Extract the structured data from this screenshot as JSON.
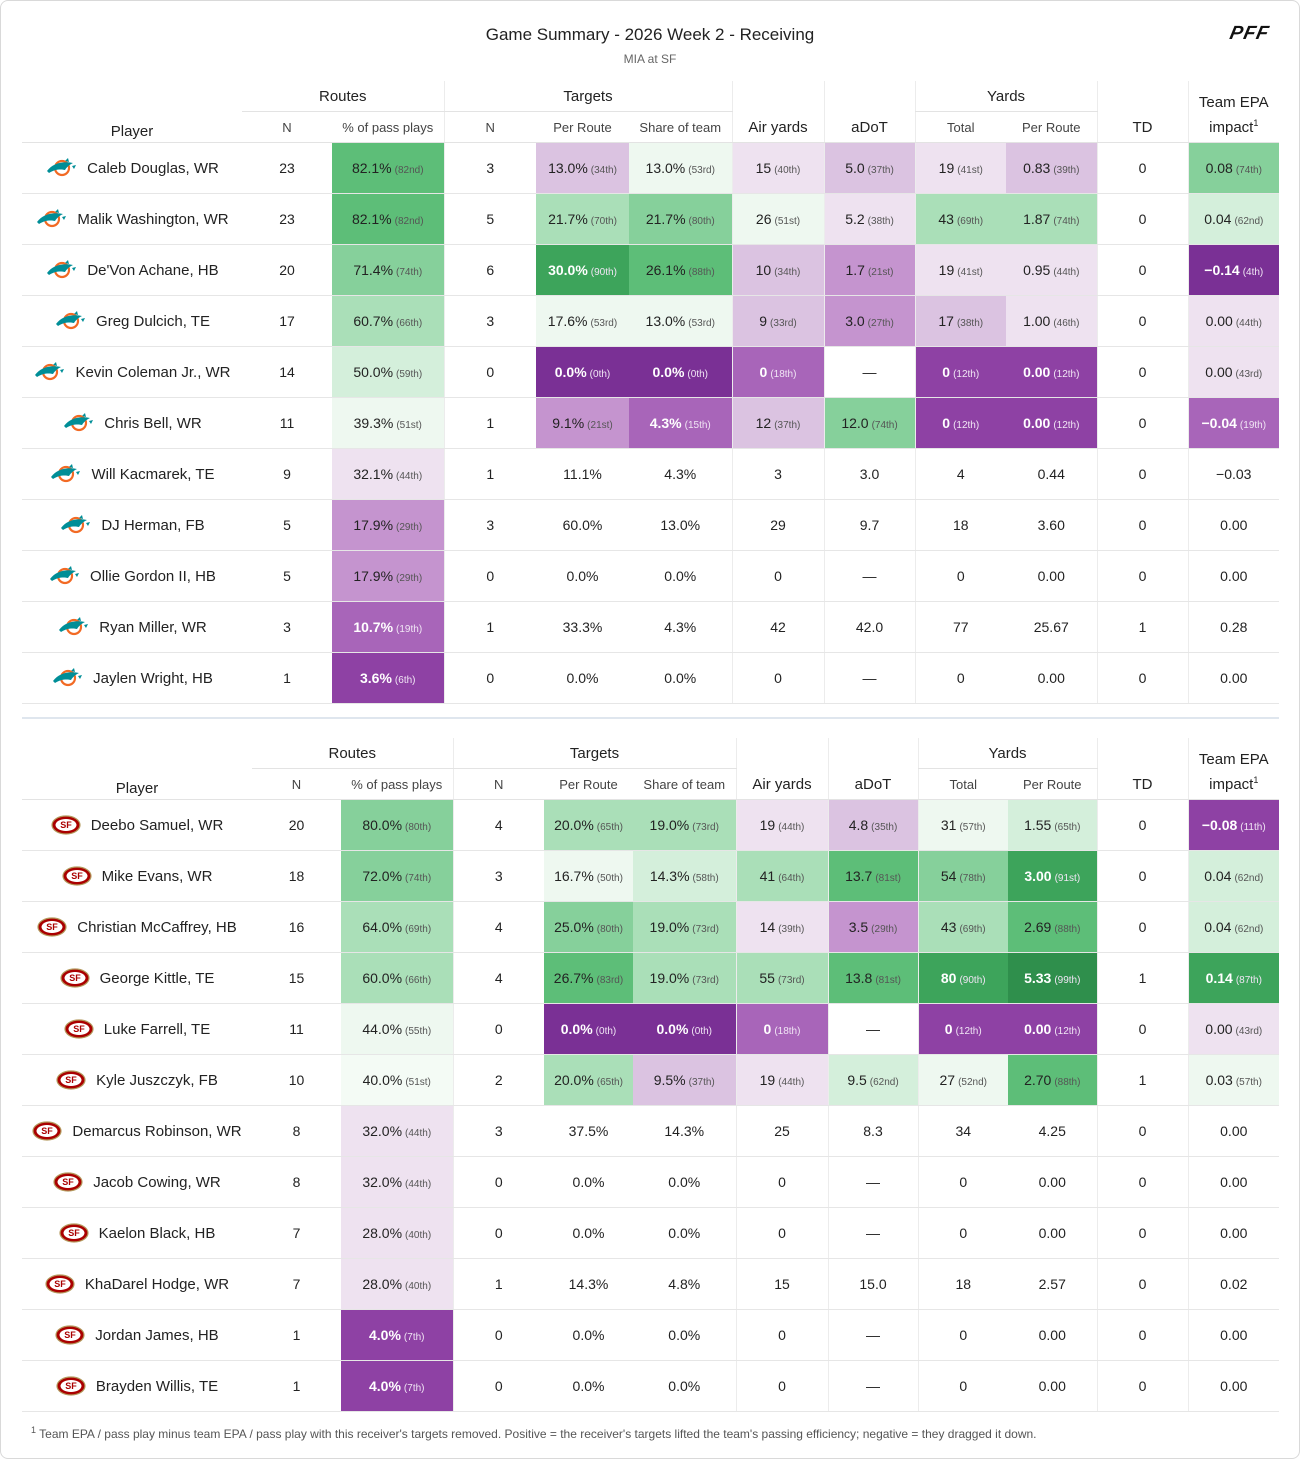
{
  "title": "Game Summary - 2026 Week 2 - Receiving",
  "subtitle": "MIA at SF",
  "logo_text": "PFF",
  "headers": {
    "player": "Player",
    "routes": "Routes",
    "targets": "Targets",
    "air_yards": "Air yards",
    "adot": "aDoT",
    "yards": "Yards",
    "td": "TD",
    "team_epa": "Team EPA impact",
    "team_epa_line1": "Team EPA",
    "team_epa_line2": "impact",
    "footnote_mark": "1",
    "n": "N",
    "pct_pass_plays": "% of pass plays",
    "per_route": "Per Route",
    "share_of_team": "Share of team",
    "total": "Total"
  },
  "colors": {
    "green_1": "#eef8f0",
    "green_2": "#d4efdb",
    "green_3": "#aadfb8",
    "green_4": "#86d09b",
    "green_5": "#5dbe78",
    "green_6": "#3da45b",
    "purple_1": "#eee2f0",
    "purple_2": "#dbc3e1",
    "purple_3": "#c594cf",
    "purple_4": "#a865b9",
    "purple_5": "#8e41a4",
    "purple_6": "#7a3095"
  },
  "teams": [
    {
      "name": "MIA",
      "icon": "dolphins-logo-icon",
      "rows": [
        {
          "player": "Caleb Douglas, WR",
          "routes_n": "23",
          "pct": "82.1%",
          "pct_rk": "(82nd)",
          "pct_c": "g5",
          "tgt": "3",
          "per_route": "13.0%",
          "per_route_rk": "(34th)",
          "per_route_c": "p2",
          "share": "13.0%",
          "share_rk": "(53rd)",
          "share_c": "g1",
          "air": "15",
          "air_rk": "(40th)",
          "air_c": "p1",
          "adot": "5.0",
          "adot_rk": "(37th)",
          "adot_c": "p2",
          "yds": "19",
          "yds_rk": "(41st)",
          "yds_c": "p1",
          "ypr": "0.83",
          "ypr_rk": "(39th)",
          "ypr_c": "p2",
          "td": "0",
          "epa": "0.08",
          "epa_rk": "(74th)",
          "epa_c": "g4"
        },
        {
          "player": "Malik Washington, WR",
          "routes_n": "23",
          "pct": "82.1%",
          "pct_rk": "(82nd)",
          "pct_c": "g5",
          "tgt": "5",
          "per_route": "21.7%",
          "per_route_rk": "(70th)",
          "per_route_c": "g3",
          "share": "21.7%",
          "share_rk": "(80th)",
          "share_c": "g4",
          "air": "26",
          "air_rk": "(51st)",
          "air_c": "g1",
          "adot": "5.2",
          "adot_rk": "(38th)",
          "adot_c": "p1",
          "yds": "43",
          "yds_rk": "(69th)",
          "yds_c": "g3",
          "ypr": "1.87",
          "ypr_rk": "(74th)",
          "ypr_c": "g3",
          "td": "0",
          "epa": "0.04",
          "epa_rk": "(62nd)",
          "epa_c": "g2"
        },
        {
          "player": "De'Von Achane, HB",
          "routes_n": "20",
          "pct": "71.4%",
          "pct_rk": "(74th)",
          "pct_c": "g4",
          "tgt": "6",
          "per_route": "30.0%",
          "per_route_rk": "(90th)",
          "per_route_c": "g6",
          "share": "26.1%",
          "share_rk": "(88th)",
          "share_c": "g5",
          "air": "10",
          "air_rk": "(34th)",
          "air_c": "p2",
          "adot": "1.7",
          "adot_rk": "(21st)",
          "adot_c": "p3",
          "yds": "19",
          "yds_rk": "(41st)",
          "yds_c": "p1",
          "ypr": "0.95",
          "ypr_rk": "(44th)",
          "ypr_c": "p1",
          "td": "0",
          "epa": "−0.14",
          "epa_rk": "(4th)",
          "epa_c": "p6"
        },
        {
          "player": "Greg Dulcich, TE",
          "routes_n": "17",
          "pct": "60.7%",
          "pct_rk": "(66th)",
          "pct_c": "g3",
          "tgt": "3",
          "per_route": "17.6%",
          "per_route_rk": "(53rd)",
          "per_route_c": "g1",
          "share": "13.0%",
          "share_rk": "(53rd)",
          "share_c": "g1",
          "air": "9",
          "air_rk": "(33rd)",
          "air_c": "p2",
          "adot": "3.0",
          "adot_rk": "(27th)",
          "adot_c": "p3",
          "yds": "17",
          "yds_rk": "(38th)",
          "yds_c": "p2",
          "ypr": "1.00",
          "ypr_rk": "(46th)",
          "ypr_c": "p1",
          "td": "0",
          "epa": "0.00",
          "epa_rk": "(44th)",
          "epa_c": "p1"
        },
        {
          "player": "Kevin Coleman Jr., WR",
          "routes_n": "14",
          "pct": "50.0%",
          "pct_rk": "(59th)",
          "pct_c": "g2",
          "tgt": "0",
          "per_route": "0.0%",
          "per_route_rk": "(0th)",
          "per_route_c": "p6",
          "share": "0.0%",
          "share_rk": "(0th)",
          "share_c": "p6",
          "air": "0",
          "air_rk": "(18th)",
          "air_c": "p4",
          "adot": "—",
          "adot_rk": "",
          "adot_c": "",
          "yds": "0",
          "yds_rk": "(12th)",
          "yds_c": "p5",
          "ypr": "0.00",
          "ypr_rk": "(12th)",
          "ypr_c": "p5",
          "td": "0",
          "epa": "0.00",
          "epa_rk": "(43rd)",
          "epa_c": "p1"
        },
        {
          "player": "Chris Bell, WR",
          "routes_n": "11",
          "pct": "39.3%",
          "pct_rk": "(51st)",
          "pct_c": "g1",
          "tgt": "1",
          "per_route": "9.1%",
          "per_route_rk": "(21st)",
          "per_route_c": "p3",
          "share": "4.3%",
          "share_rk": "(15th)",
          "share_c": "p4",
          "air": "12",
          "air_rk": "(37th)",
          "air_c": "p2",
          "adot": "12.0",
          "adot_rk": "(74th)",
          "adot_c": "g4",
          "yds": "0",
          "yds_rk": "(12th)",
          "yds_c": "p5",
          "ypr": "0.00",
          "ypr_rk": "(12th)",
          "ypr_c": "p5",
          "td": "0",
          "epa": "−0.04",
          "epa_rk": "(19th)",
          "epa_c": "p4"
        },
        {
          "player": "Will Kacmarek, TE",
          "routes_n": "9",
          "pct": "32.1%",
          "pct_rk": "(44th)",
          "pct_c": "p1",
          "tgt": "1",
          "per_route": "11.1%",
          "per_route_rk": "",
          "per_route_c": "",
          "share": "4.3%",
          "share_rk": "",
          "share_c": "",
          "air": "3",
          "air_rk": "",
          "air_c": "",
          "adot": "3.0",
          "adot_rk": "",
          "adot_c": "",
          "yds": "4",
          "yds_rk": "",
          "yds_c": "",
          "ypr": "0.44",
          "ypr_rk": "",
          "ypr_c": "",
          "td": "0",
          "epa": "−0.03",
          "epa_rk": "",
          "epa_c": ""
        },
        {
          "player": "DJ Herman, FB",
          "routes_n": "5",
          "pct": "17.9%",
          "pct_rk": "(29th)",
          "pct_c": "p3",
          "tgt": "3",
          "per_route": "60.0%",
          "per_route_rk": "",
          "per_route_c": "",
          "share": "13.0%",
          "share_rk": "",
          "share_c": "",
          "air": "29",
          "air_rk": "",
          "air_c": "",
          "adot": "9.7",
          "adot_rk": "",
          "adot_c": "",
          "yds": "18",
          "yds_rk": "",
          "yds_c": "",
          "ypr": "3.60",
          "ypr_rk": "",
          "ypr_c": "",
          "td": "0",
          "epa": "0.00",
          "epa_rk": "",
          "epa_c": ""
        },
        {
          "player": "Ollie Gordon II, HB",
          "routes_n": "5",
          "pct": "17.9%",
          "pct_rk": "(29th)",
          "pct_c": "p3",
          "tgt": "0",
          "per_route": "0.0%",
          "per_route_rk": "",
          "per_route_c": "",
          "share": "0.0%",
          "share_rk": "",
          "share_c": "",
          "air": "0",
          "air_rk": "",
          "air_c": "",
          "adot": "—",
          "adot_rk": "",
          "adot_c": "",
          "yds": "0",
          "yds_rk": "",
          "yds_c": "",
          "ypr": "0.00",
          "ypr_rk": "",
          "ypr_c": "",
          "td": "0",
          "epa": "0.00",
          "epa_rk": "",
          "epa_c": ""
        },
        {
          "player": "Ryan Miller, WR",
          "routes_n": "3",
          "pct": "10.7%",
          "pct_rk": "(19th)",
          "pct_c": "p4",
          "tgt": "1",
          "per_route": "33.3%",
          "per_route_rk": "",
          "per_route_c": "",
          "share": "4.3%",
          "share_rk": "",
          "share_c": "",
          "air": "42",
          "air_rk": "",
          "air_c": "",
          "adot": "42.0",
          "adot_rk": "",
          "adot_c": "",
          "yds": "77",
          "yds_rk": "",
          "yds_c": "",
          "ypr": "25.67",
          "ypr_rk": "",
          "ypr_c": "",
          "td": "1",
          "epa": "0.28",
          "epa_rk": "",
          "epa_c": ""
        },
        {
          "player": "Jaylen Wright, HB",
          "routes_n": "1",
          "pct": "3.6%",
          "pct_rk": "(6th)",
          "pct_c": "p5",
          "tgt": "0",
          "per_route": "0.0%",
          "per_route_rk": "",
          "per_route_c": "",
          "share": "0.0%",
          "share_rk": "",
          "share_c": "",
          "air": "0",
          "air_rk": "",
          "air_c": "",
          "adot": "—",
          "adot_rk": "",
          "adot_c": "",
          "yds": "0",
          "yds_rk": "",
          "yds_c": "",
          "ypr": "0.00",
          "ypr_rk": "",
          "ypr_c": "",
          "td": "0",
          "epa": "0.00",
          "epa_rk": "",
          "epa_c": ""
        }
      ]
    },
    {
      "name": "SF",
      "icon": "49ers-logo-icon",
      "rows": [
        {
          "player": "Deebo Samuel, WR",
          "routes_n": "20",
          "pct": "80.0%",
          "pct_rk": "(80th)",
          "pct_c": "g4",
          "tgt": "4",
          "per_route": "20.0%",
          "per_route_rk": "(65th)",
          "per_route_c": "g3",
          "share": "19.0%",
          "share_rk": "(73rd)",
          "share_c": "g3",
          "air": "19",
          "air_rk": "(44th)",
          "air_c": "p1",
          "adot": "4.8",
          "adot_rk": "(35th)",
          "adot_c": "p2",
          "yds": "31",
          "yds_rk": "(57th)",
          "yds_c": "g1",
          "ypr": "1.55",
          "ypr_rk": "(65th)",
          "ypr_c": "g2",
          "td": "0",
          "epa": "−0.08",
          "epa_rk": "(11th)",
          "epa_c": "p5"
        },
        {
          "player": "Mike Evans, WR",
          "routes_n": "18",
          "pct": "72.0%",
          "pct_rk": "(74th)",
          "pct_c": "g4",
          "tgt": "3",
          "per_route": "16.7%",
          "per_route_rk": "(50th)",
          "per_route_c": "g1",
          "share": "14.3%",
          "share_rk": "(58th)",
          "share_c": "g2",
          "air": "41",
          "air_rk": "(64th)",
          "air_c": "g3",
          "adot": "13.7",
          "adot_rk": "(81st)",
          "adot_c": "g5",
          "yds": "54",
          "yds_rk": "(78th)",
          "yds_c": "g4",
          "ypr": "3.00",
          "ypr_rk": "(91st)",
          "ypr_c": "g6",
          "td": "0",
          "epa": "0.04",
          "epa_rk": "(62nd)",
          "epa_c": "g2"
        },
        {
          "player": "Christian McCaffrey, HB",
          "routes_n": "16",
          "pct": "64.0%",
          "pct_rk": "(69th)",
          "pct_c": "g3",
          "tgt": "4",
          "per_route": "25.0%",
          "per_route_rk": "(80th)",
          "per_route_c": "g4",
          "share": "19.0%",
          "share_rk": "(73rd)",
          "share_c": "g3",
          "air": "14",
          "air_rk": "(39th)",
          "air_c": "p1",
          "adot": "3.5",
          "adot_rk": "(29th)",
          "adot_c": "p3",
          "yds": "43",
          "yds_rk": "(69th)",
          "yds_c": "g3",
          "ypr": "2.69",
          "ypr_rk": "(88th)",
          "ypr_c": "g5",
          "td": "0",
          "epa": "0.04",
          "epa_rk": "(62nd)",
          "epa_c": "g2"
        },
        {
          "player": "George Kittle, TE",
          "routes_n": "15",
          "pct": "60.0%",
          "pct_rk": "(66th)",
          "pct_c": "g3",
          "tgt": "4",
          "per_route": "26.7%",
          "per_route_rk": "(83rd)",
          "per_route_c": "g5",
          "share": "19.0%",
          "share_rk": "(73rd)",
          "share_c": "g3",
          "air": "55",
          "air_rk": "(73rd)",
          "air_c": "g3",
          "adot": "13.8",
          "adot_rk": "(81st)",
          "adot_c": "g5",
          "yds": "80",
          "yds_rk": "(90th)",
          "yds_c": "g6",
          "ypr": "5.33",
          "ypr_rk": "(99th)",
          "ypr_c": "g7",
          "td": "1",
          "epa": "0.14",
          "epa_rk": "(87th)",
          "epa_c": "g6"
        },
        {
          "player": "Luke Farrell, TE",
          "routes_n": "11",
          "pct": "44.0%",
          "pct_rk": "(55th)",
          "pct_c": "g1",
          "tgt": "0",
          "per_route": "0.0%",
          "per_route_rk": "(0th)",
          "per_route_c": "p6",
          "share": "0.0%",
          "share_rk": "(0th)",
          "share_c": "p6",
          "air": "0",
          "air_rk": "(18th)",
          "air_c": "p4",
          "adot": "—",
          "adot_rk": "",
          "adot_c": "",
          "yds": "0",
          "yds_rk": "(12th)",
          "yds_c": "p5",
          "ypr": "0.00",
          "ypr_rk": "(12th)",
          "ypr_c": "p5",
          "td": "0",
          "epa": "0.00",
          "epa_rk": "(43rd)",
          "epa_c": "p1"
        },
        {
          "player": "Kyle Juszczyk, FB",
          "routes_n": "10",
          "pct": "40.0%",
          "pct_rk": "(51st)",
          "pct_c": "g0",
          "tgt": "2",
          "per_route": "20.0%",
          "per_route_rk": "(65th)",
          "per_route_c": "g3",
          "share": "9.5%",
          "share_rk": "(37th)",
          "share_c": "p2",
          "air": "19",
          "air_rk": "(44th)",
          "air_c": "p1",
          "adot": "9.5",
          "adot_rk": "(62nd)",
          "adot_c": "g2",
          "yds": "27",
          "yds_rk": "(52nd)",
          "yds_c": "g1",
          "ypr": "2.70",
          "ypr_rk": "(88th)",
          "ypr_c": "g5",
          "td": "1",
          "epa": "0.03",
          "epa_rk": "(57th)",
          "epa_c": "g1"
        },
        {
          "player": "Demarcus Robinson, WR",
          "routes_n": "8",
          "pct": "32.0%",
          "pct_rk": "(44th)",
          "pct_c": "p1",
          "tgt": "3",
          "per_route": "37.5%",
          "per_route_rk": "",
          "per_route_c": "",
          "share": "14.3%",
          "share_rk": "",
          "share_c": "",
          "air": "25",
          "air_rk": "",
          "air_c": "",
          "adot": "8.3",
          "adot_rk": "",
          "adot_c": "",
          "yds": "34",
          "yds_rk": "",
          "yds_c": "",
          "ypr": "4.25",
          "ypr_rk": "",
          "ypr_c": "",
          "td": "0",
          "epa": "0.00",
          "epa_rk": "",
          "epa_c": ""
        },
        {
          "player": "Jacob Cowing, WR",
          "routes_n": "8",
          "pct": "32.0%",
          "pct_rk": "(44th)",
          "pct_c": "p1",
          "tgt": "0",
          "per_route": "0.0%",
          "per_route_rk": "",
          "per_route_c": "",
          "share": "0.0%",
          "share_rk": "",
          "share_c": "",
          "air": "0",
          "air_rk": "",
          "air_c": "",
          "adot": "—",
          "adot_rk": "",
          "adot_c": "",
          "yds": "0",
          "yds_rk": "",
          "yds_c": "",
          "ypr": "0.00",
          "ypr_rk": "",
          "ypr_c": "",
          "td": "0",
          "epa": "0.00",
          "epa_rk": "",
          "epa_c": ""
        },
        {
          "player": "Kaelon Black, HB",
          "routes_n": "7",
          "pct": "28.0%",
          "pct_rk": "(40th)",
          "pct_c": "p1",
          "tgt": "0",
          "per_route": "0.0%",
          "per_route_rk": "",
          "per_route_c": "",
          "share": "0.0%",
          "share_rk": "",
          "share_c": "",
          "air": "0",
          "air_rk": "",
          "air_c": "",
          "adot": "—",
          "adot_rk": "",
          "adot_c": "",
          "yds": "0",
          "yds_rk": "",
          "yds_c": "",
          "ypr": "0.00",
          "ypr_rk": "",
          "ypr_c": "",
          "td": "0",
          "epa": "0.00",
          "epa_rk": "",
          "epa_c": ""
        },
        {
          "player": "KhaDarel Hodge, WR",
          "routes_n": "7",
          "pct": "28.0%",
          "pct_rk": "(40th)",
          "pct_c": "p1",
          "tgt": "1",
          "per_route": "14.3%",
          "per_route_rk": "",
          "per_route_c": "",
          "share": "4.8%",
          "share_rk": "",
          "share_c": "",
          "air": "15",
          "air_rk": "",
          "air_c": "",
          "adot": "15.0",
          "adot_rk": "",
          "adot_c": "",
          "yds": "18",
          "yds_rk": "",
          "yds_c": "",
          "ypr": "2.57",
          "ypr_rk": "",
          "ypr_c": "",
          "td": "0",
          "epa": "0.02",
          "epa_rk": "",
          "epa_c": ""
        },
        {
          "player": "Jordan James, HB",
          "routes_n": "1",
          "pct": "4.0%",
          "pct_rk": "(7th)",
          "pct_c": "p5",
          "tgt": "0",
          "per_route": "0.0%",
          "per_route_rk": "",
          "per_route_c": "",
          "share": "0.0%",
          "share_rk": "",
          "share_c": "",
          "air": "0",
          "air_rk": "",
          "air_c": "",
          "adot": "—",
          "adot_rk": "",
          "adot_c": "",
          "yds": "0",
          "yds_rk": "",
          "yds_c": "",
          "ypr": "0.00",
          "ypr_rk": "",
          "ypr_c": "",
          "td": "0",
          "epa": "0.00",
          "epa_rk": "",
          "epa_c": ""
        },
        {
          "player": "Brayden Willis, TE",
          "routes_n": "1",
          "pct": "4.0%",
          "pct_rk": "(7th)",
          "pct_c": "p5",
          "tgt": "0",
          "per_route": "0.0%",
          "per_route_rk": "",
          "per_route_c": "",
          "share": "0.0%",
          "share_rk": "",
          "share_c": "",
          "air": "0",
          "air_rk": "",
          "air_c": "",
          "adot": "—",
          "adot_rk": "",
          "adot_c": "",
          "yds": "0",
          "yds_rk": "",
          "yds_c": "",
          "ypr": "0.00",
          "ypr_rk": "",
          "ypr_c": "",
          "td": "0",
          "epa": "0.00",
          "epa_rk": "",
          "epa_c": ""
        }
      ]
    }
  ],
  "footnote": {
    "mark": "1",
    "text": "Team EPA / pass play minus team EPA / pass play with this receiver's targets removed. Positive = the receiver's targets lifted the team's passing efficiency; negative = they dragged it down."
  }
}
